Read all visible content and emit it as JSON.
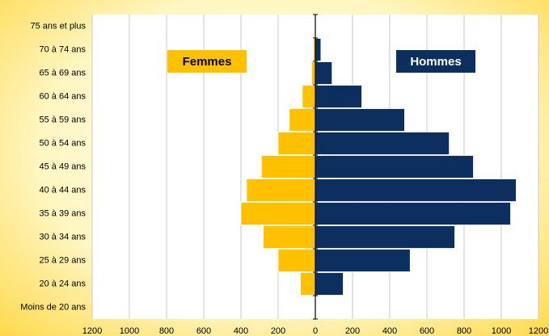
{
  "chart_data": {
    "type": "pyramid",
    "categories": [
      "75 ans et plus",
      "70 à 74 ans",
      "65 à 69 ans",
      "60 à 64 ans",
      "55 à 59 ans",
      "50 à 54 ans",
      "45 à 49 ans",
      "40 à 44 ans",
      "35 à 39 ans",
      "30 à 34 ans",
      "25 à 29 ans",
      "20 à 24 ans",
      "Moins de 20 ans"
    ],
    "series": [
      {
        "name": "Femmes",
        "color": "#ffc000",
        "side": "left",
        "values": [
          0,
          10,
          20,
          70,
          140,
          200,
          290,
          370,
          400,
          280,
          200,
          80,
          0
        ]
      },
      {
        "name": "Hommes",
        "color": "#0c2f5f",
        "side": "right",
        "values": [
          0,
          30,
          90,
          250,
          480,
          720,
          850,
          1080,
          1050,
          750,
          510,
          150,
          0
        ]
      }
    ],
    "xlim": [
      -1200,
      1200
    ],
    "xticks": [
      {
        "value": -1200,
        "label": "1200"
      },
      {
        "value": -1000,
        "label": "1000"
      },
      {
        "value": -800,
        "label": "800"
      },
      {
        "value": -600,
        "label": "600"
      },
      {
        "value": -400,
        "label": "400"
      },
      {
        "value": -200,
        "label": "200"
      },
      0,
      200,
      400,
      600,
      800,
      1000,
      1200
    ],
    "grid": true
  }
}
